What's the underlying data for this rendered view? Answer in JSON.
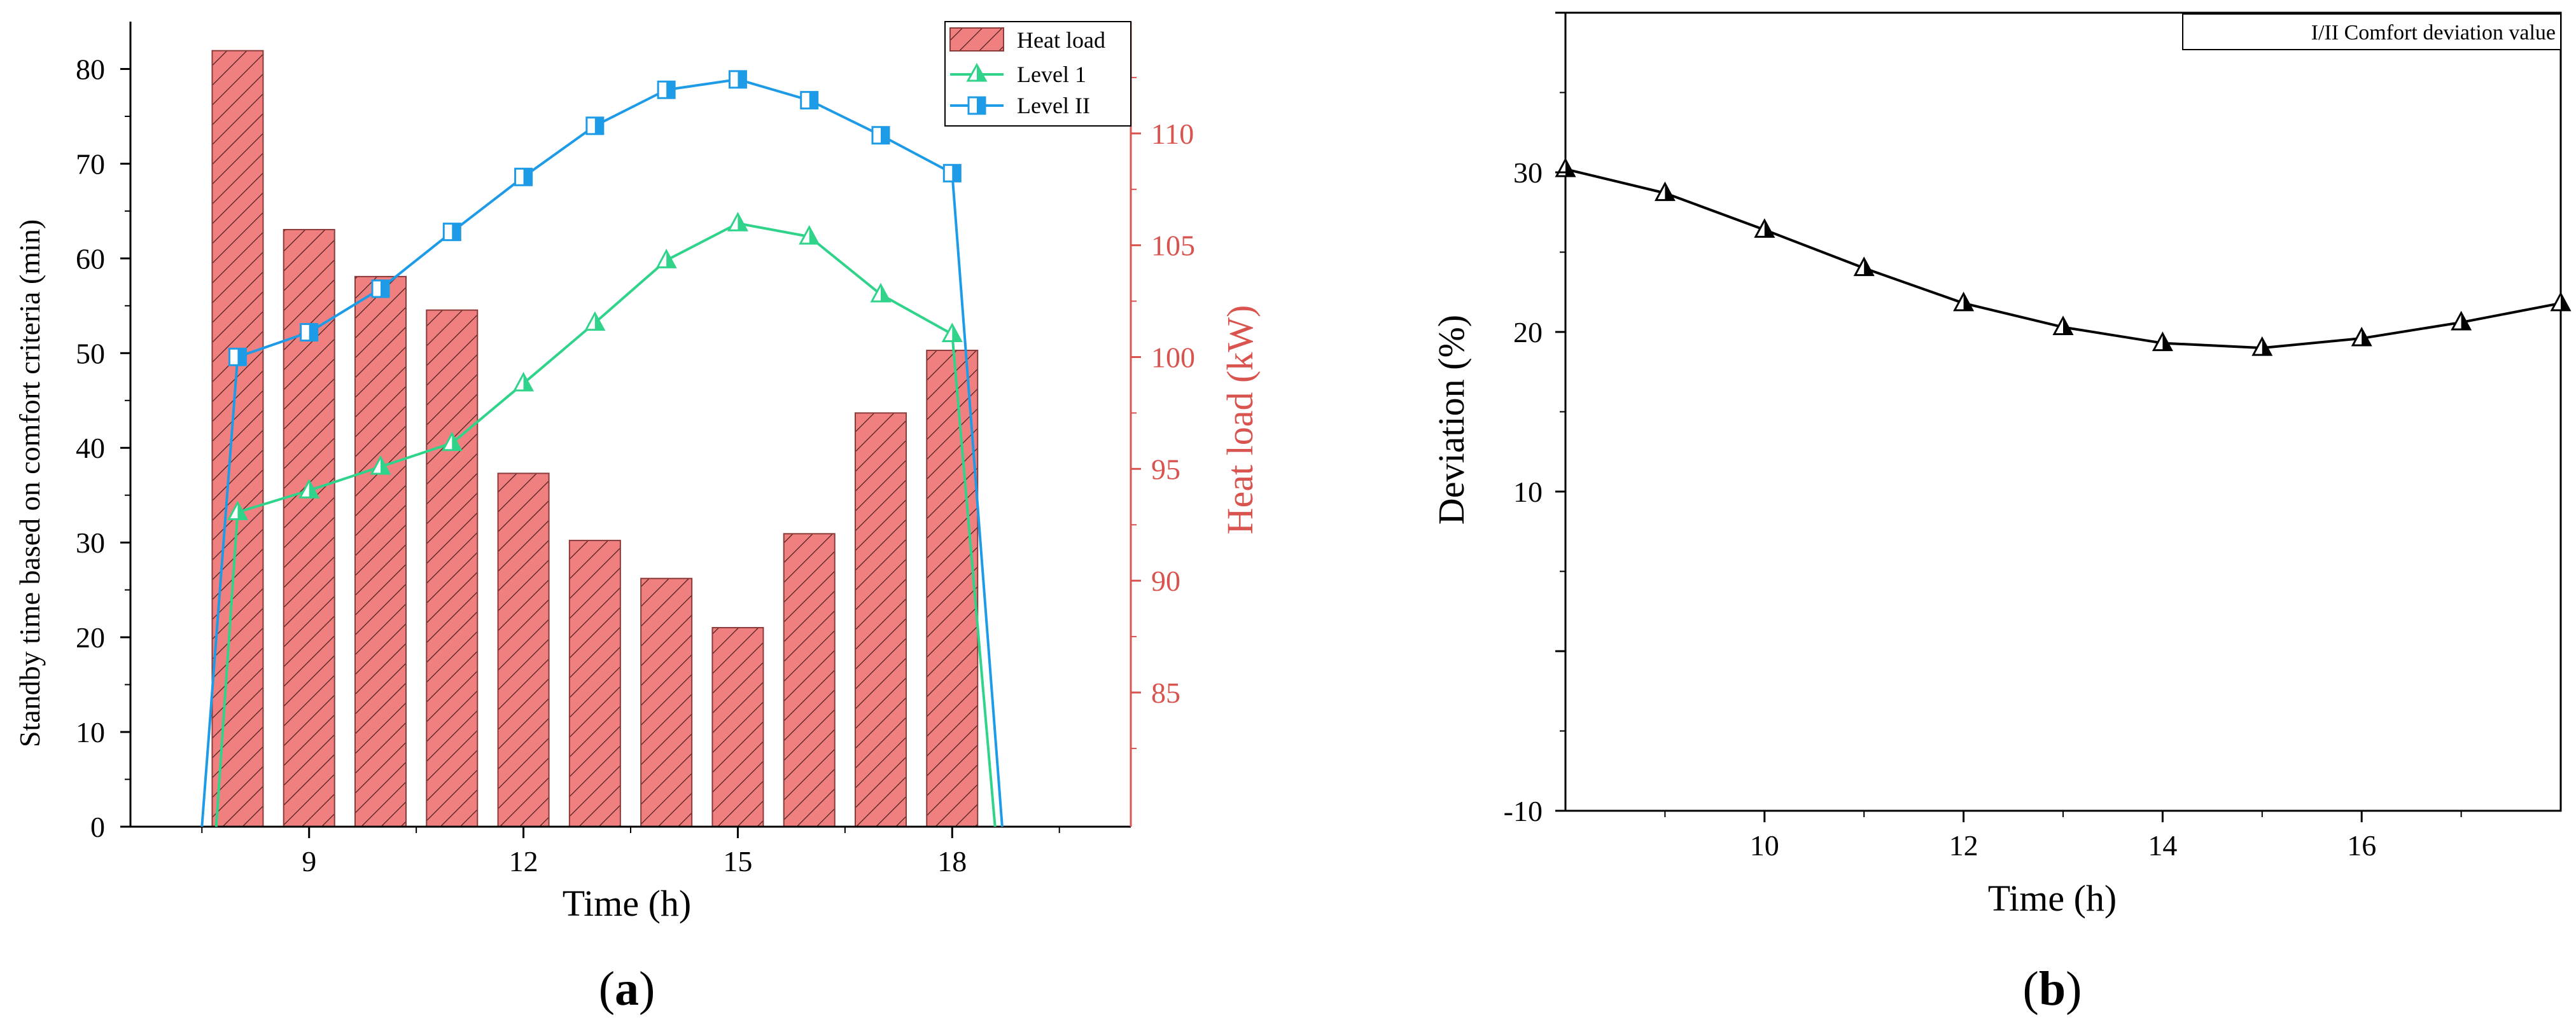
{
  "colors": {
    "bar_fill": "#f08080",
    "bar_stroke": "#8b3a3a",
    "bar_hatch": "#4a1c1c",
    "level1": "#2fd38a",
    "level2": "#1e9be6",
    "heat_axis": "#d9534f",
    "axis": "#000000",
    "deviation_line": "#000000"
  },
  "panels": {
    "a": {
      "label": "(a)",
      "label_letter": "a"
    },
    "b": {
      "label": "(b)",
      "label_letter": "b"
    }
  },
  "chart_data": [
    {
      "id": "a",
      "type": "bar+line",
      "title": "",
      "xlabel": "Time (h)",
      "ylabel": "Standby time based on comfort criteria (min)",
      "y2label": "Heat load (kW)",
      "xlim": [
        6.5,
        20.5
      ],
      "ylim": [
        0,
        85
      ],
      "y2lim": [
        79,
        115
      ],
      "xticks": [
        9,
        12,
        15,
        18
      ],
      "yticks": [
        0,
        10,
        20,
        30,
        40,
        50,
        60,
        70,
        80
      ],
      "y2ticks": [
        85,
        90,
        95,
        100,
        105,
        110
      ],
      "bars": {
        "name": "Heat load",
        "axis": "y2",
        "x": [
          8,
          9,
          10,
          11,
          12,
          13,
          14,
          15,
          16,
          17,
          18
        ],
        "values": [
          113.7,
          105.7,
          103.6,
          102.1,
          94.8,
          91.8,
          90.1,
          87.9,
          92.1,
          97.5,
          100.3
        ]
      },
      "series": [
        {
          "name": "Level 1",
          "marker": "triangle",
          "x": [
            7.7,
            8,
            9,
            10,
            11,
            12,
            13,
            14,
            15,
            16,
            17,
            18,
            18.6
          ],
          "values": [
            0,
            33.2,
            35.5,
            38,
            40.5,
            46.8,
            53.2,
            59.8,
            63.7,
            62.3,
            56.2,
            52,
            0
          ]
        },
        {
          "name": "Level II",
          "marker": "square",
          "x": [
            7.5,
            8,
            9,
            10,
            11,
            12,
            13,
            14,
            15,
            16,
            17,
            18,
            18.7
          ],
          "values": [
            0,
            49.6,
            52.2,
            56.8,
            62.8,
            68.6,
            74,
            77.8,
            78.9,
            76.7,
            73,
            69,
            0
          ]
        }
      ],
      "legend": {
        "position": "top-right",
        "entries": [
          "Heat load",
          "Level 1",
          "Level II"
        ]
      }
    },
    {
      "id": "b",
      "type": "line",
      "title": "",
      "xlabel": "Time (h)",
      "ylabel": "Deviation (%)",
      "xlim": [
        8,
        18
      ],
      "ylim": [
        -10,
        40
      ],
      "xticks": [
        10,
        12,
        14,
        16
      ],
      "yticks": [
        -10,
        10,
        20,
        30
      ],
      "series": [
        {
          "name": "I/II Comfort deviation value",
          "marker": "triangle",
          "x": [
            8,
            9,
            10,
            11,
            12,
            13,
            14,
            15,
            16,
            17,
            18
          ],
          "values": [
            30.2,
            28.7,
            26.4,
            24,
            21.8,
            20.3,
            19.3,
            19,
            19.6,
            20.6,
            21.8
          ]
        }
      ],
      "legend": {
        "position": "top-right",
        "entries": [
          "I/II Comfort deviation value"
        ]
      }
    }
  ]
}
